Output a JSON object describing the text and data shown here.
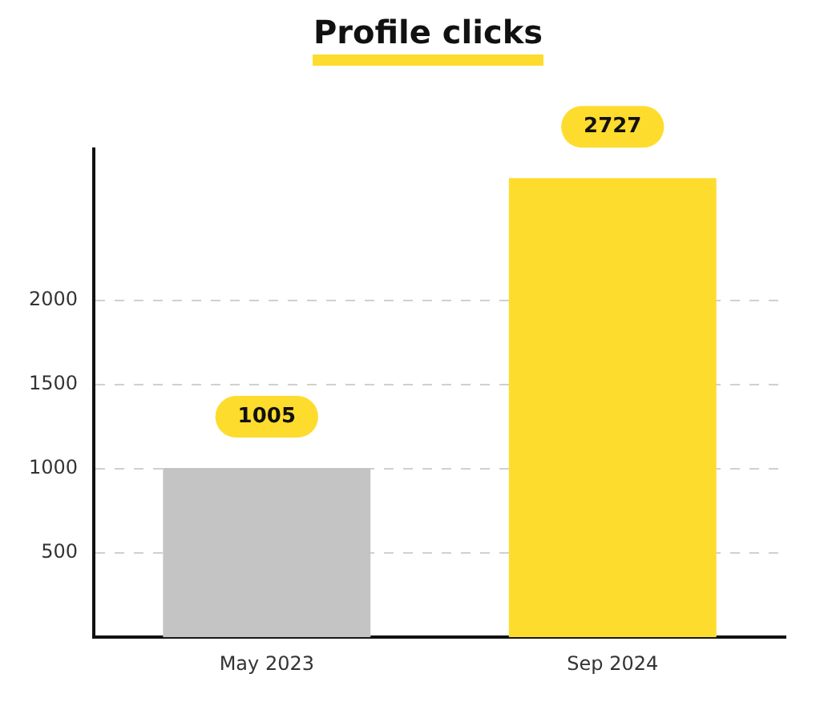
{
  "chart_data": {
    "type": "bar",
    "title": "Profile clicks",
    "categories": [
      "May 2023",
      "Sep 2024"
    ],
    "values": [
      1005,
      2727
    ],
    "colors": [
      "#c4c4c4",
      "#fddc2e"
    ],
    "ylim": [
      0,
      2900
    ],
    "yticks": [
      500,
      1000,
      1500,
      2000
    ],
    "grid": "y",
    "data_labels": true,
    "legend": false
  }
}
